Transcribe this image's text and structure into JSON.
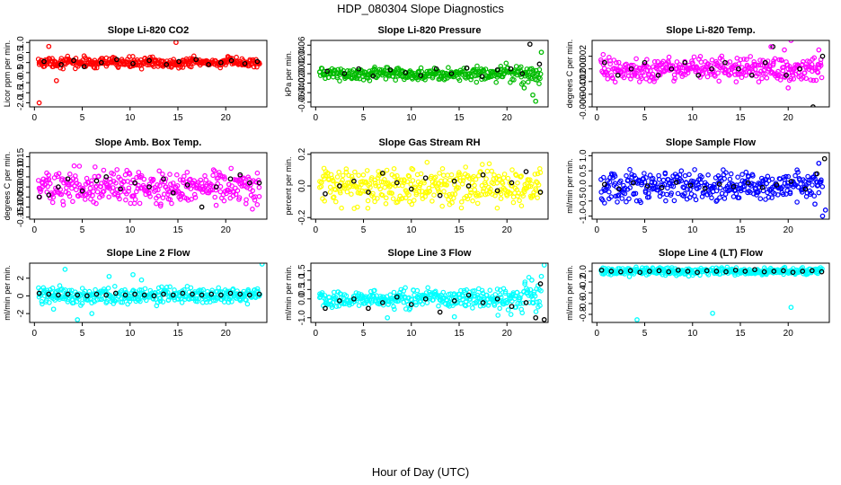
{
  "figure": {
    "title": "HDP_080304  Slope Diagnostics",
    "xlabel": "Hour of Day (UTC)"
  },
  "chart_data": [
    {
      "type": "scatter",
      "title": "Slope Li-820 CO2",
      "ylabel": "Licor ppm per min.",
      "xlim": [
        -0.5,
        24.3
      ],
      "ylim": [
        -2.2,
        1.1
      ],
      "xticks": [
        "0",
        "5",
        "10",
        "15",
        "20"
      ],
      "yticks": [
        "-2.0",
        "-1.5",
        "-1.0",
        "-0.5",
        "0.0",
        "0.5",
        "1.0"
      ],
      "color": "#ff0000",
      "center": 0.0,
      "spread": 0.15,
      "series": [
        {
          "name": "black",
          "color": "#000000",
          "x": [
            1.0,
            2.8,
            4.1,
            5.2,
            7.0,
            8.6,
            10.3,
            12.0,
            13.8,
            15.1,
            16.9,
            18.2,
            19.5,
            20.6,
            22.0,
            23.3
          ],
          "y": [
            0.05,
            -0.1,
            0.1,
            -0.2,
            0.0,
            0.15,
            -0.05,
            0.1,
            -0.1,
            0.05,
            0.15,
            -0.1,
            0.0,
            0.1,
            -0.05,
            0.05
          ]
        },
        {
          "name": "outliers",
          "color": "#ff0000",
          "x": [
            0.5,
            1.5,
            2.3,
            14.8
          ],
          "y": [
            -2.0,
            0.8,
            -0.9,
            1.0
          ]
        }
      ]
    },
    {
      "type": "scatter",
      "title": "Slope Li-820 Pressure",
      "ylabel": "kPa per min.",
      "xlim": [
        -0.5,
        24.3
      ],
      "ylim": [
        -0.07,
        0.07
      ],
      "xticks": [
        "0",
        "5",
        "10",
        "15",
        "20"
      ],
      "yticks": [
        "-0.06",
        "-0.04",
        "-0.02",
        "0.00",
        "0.02",
        "0.04",
        "0.06"
      ],
      "color": "#00bb00",
      "center": 0.0,
      "spread": 0.008,
      "series": [
        {
          "name": "black",
          "color": "#000000",
          "x": [
            1.2,
            3.0,
            4.5,
            6.0,
            7.8,
            9.4,
            11.0,
            12.6,
            14.2,
            15.8,
            17.4,
            19.0,
            20.4,
            21.6,
            22.4,
            23.4
          ],
          "y": [
            0.005,
            0.0,
            0.01,
            -0.005,
            0.008,
            0.002,
            -0.004,
            0.01,
            0.0,
            0.012,
            -0.006,
            0.008,
            0.01,
            0.0,
            0.062,
            0.02
          ]
        },
        {
          "name": "outliers",
          "color": "#00bb00",
          "x": [
            23.0,
            22.7,
            23.6,
            21.8
          ],
          "y": [
            -0.058,
            -0.045,
            0.045,
            -0.03
          ]
        }
      ]
    },
    {
      "type": "scatter",
      "title": "Slope Li-820 Temp.",
      "ylabel": "degrees C per min.",
      "xlim": [
        -0.5,
        24.3
      ],
      "ylim": [
        -0.006,
        0.0045
      ],
      "xticks": [
        "0",
        "5",
        "10",
        "15",
        "20"
      ],
      "yticks": [
        "-0.006",
        "-0.004",
        "-0.002",
        "0.000",
        "0.002"
      ],
      "color": "#ff00ff",
      "center": 0.0,
      "spread": 0.0011,
      "series": [
        {
          "name": "black",
          "color": "#000000",
          "x": [
            0.8,
            2.2,
            3.6,
            5.0,
            6.4,
            7.8,
            9.2,
            10.6,
            12.0,
            13.4,
            14.8,
            16.2,
            17.6,
            18.4,
            19.8,
            21.2,
            22.6,
            23.6
          ],
          "y": [
            0.001,
            -0.001,
            0.0,
            0.001,
            -0.001,
            0.0,
            0.001,
            -0.001,
            0.0,
            0.001,
            0.0,
            -0.001,
            0.001,
            0.0035,
            -0.001,
            0.0,
            -0.006,
            0.002
          ]
        },
        {
          "name": "outliers",
          "color": "#ff00ff",
          "x": [
            18.2,
            19.6,
            20.3,
            23.2,
            20.0
          ],
          "y": [
            0.0035,
            0.003,
            0.0045,
            0.003,
            -0.003
          ]
        }
      ]
    },
    {
      "type": "scatter",
      "title": "Slope Amb. Box Temp.",
      "ylabel": "degrees C per min.",
      "xlim": [
        -0.5,
        24.3
      ],
      "ylim": [
        -0.16,
        0.17
      ],
      "xticks": [
        "0",
        "5",
        "10",
        "15",
        "20"
      ],
      "yticks": [
        "-0.15",
        "-0.10",
        "-0.05",
        "0.00",
        "0.05",
        "0.10",
        "0.15"
      ],
      "color": "#ff00ff",
      "center": 0.0,
      "spread": 0.055,
      "series": [
        {
          "name": "black",
          "color": "#000000",
          "x": [
            0.5,
            1.5,
            2.5,
            3.5,
            5.0,
            6.5,
            7.5,
            9.0,
            10.5,
            12.0,
            13.5,
            14.5,
            16.0,
            17.5,
            19.0,
            20.5,
            21.5,
            22.5,
            23.5
          ],
          "y": [
            -0.05,
            -0.04,
            0.0,
            0.04,
            -0.02,
            0.03,
            0.05,
            -0.01,
            0.02,
            0.0,
            0.04,
            -0.03,
            0.01,
            -0.1,
            0.0,
            0.04,
            0.06,
            0.02,
            0.02
          ]
        }
      ]
    },
    {
      "type": "scatter",
      "title": "Slope Gas Stream RH",
      "ylabel": "percent per min.",
      "xlim": [
        -0.5,
        24.3
      ],
      "ylim": [
        -0.21,
        0.21
      ],
      "xticks": [
        "0",
        "5",
        "10",
        "15",
        "20"
      ],
      "yticks": [
        "-0.2",
        "0.0",
        "0.2"
      ],
      "color": "#ffff00",
      "center": 0.0,
      "spread": 0.075,
      "series": [
        {
          "name": "black",
          "color": "#000000",
          "x": [
            1.0,
            2.5,
            4.0,
            5.5,
            7.0,
            8.5,
            10.0,
            11.5,
            13.0,
            14.5,
            16.0,
            17.5,
            19.0,
            20.5,
            22.0,
            23.5
          ],
          "y": [
            -0.05,
            0.0,
            0.03,
            -0.04,
            0.08,
            0.02,
            -0.02,
            0.05,
            -0.06,
            0.03,
            0.0,
            0.07,
            -0.03,
            0.02,
            0.09,
            -0.04
          ]
        }
      ]
    },
    {
      "type": "scatter",
      "title": "Slope Sample Flow",
      "ylabel": "ml/min per min.",
      "xlim": [
        -0.5,
        24.3
      ],
      "ylim": [
        -1.1,
        1.1
      ],
      "xticks": [
        "0",
        "5",
        "10",
        "15",
        "20"
      ],
      "yticks": [
        "-1.0",
        "-0.5",
        "0.0",
        "0.5",
        "1.0"
      ],
      "color": "#0000ff",
      "center": 0.0,
      "spread": 0.28,
      "series": [
        {
          "name": "black",
          "color": "#000000",
          "x": [
            0.8,
            2.3,
            3.8,
            5.3,
            6.8,
            8.3,
            9.8,
            11.3,
            12.8,
            14.3,
            15.8,
            17.3,
            18.8,
            20.3,
            21.8,
            23.0,
            23.8
          ],
          "y": [
            0.05,
            -0.1,
            0.1,
            0.0,
            -0.05,
            0.12,
            0.02,
            -0.08,
            0.06,
            -0.02,
            0.1,
            -0.05,
            0.03,
            0.15,
            -0.1,
            0.4,
            0.9
          ]
        },
        {
          "name": "outliers",
          "color": "#0000ff",
          "x": [
            23.6,
            23.9,
            23.2,
            22.8
          ],
          "y": [
            -1.0,
            -0.8,
            0.75,
            -0.6
          ]
        }
      ]
    },
    {
      "type": "scatter",
      "title": "Slope Line 2 Flow",
      "ylabel": "ml/min per min.",
      "xlim": [
        -0.5,
        24.3
      ],
      "ylim": [
        -3.0,
        3.7
      ],
      "xticks": [
        "0",
        "5",
        "10",
        "15",
        "20"
      ],
      "yticks": [
        "-2",
        "0",
        "2"
      ],
      "color": "#00ffff",
      "center": 0.0,
      "spread": 0.55,
      "series": [
        {
          "name": "black",
          "color": "#000000",
          "x": [
            0.5,
            1.5,
            2.5,
            3.5,
            4.5,
            5.5,
            6.5,
            7.5,
            8.5,
            9.5,
            10.5,
            11.5,
            12.5,
            13.5,
            14.5,
            15.5,
            16.5,
            17.5,
            18.5,
            19.5,
            20.5,
            21.5,
            22.5,
            23.5
          ],
          "y": [
            0.3,
            0.2,
            0.1,
            0.2,
            0.1,
            0.0,
            0.2,
            0.1,
            0.3,
            0.1,
            0.2,
            0.1,
            0.0,
            0.2,
            0.1,
            0.3,
            0.2,
            0.1,
            0.2,
            0.1,
            0.3,
            0.2,
            0.1,
            0.2
          ]
        },
        {
          "name": "outliers",
          "color": "#00ffff",
          "x": [
            4.5,
            3.2,
            23.8,
            2.0,
            7.8,
            6.0,
            11.2,
            10.3
          ],
          "y": [
            -2.7,
            3.0,
            3.6,
            -1.5,
            2.2,
            -2.0,
            1.8,
            2.4
          ]
        }
      ]
    },
    {
      "type": "scatter",
      "title": "Slope Line 3 Flow",
      "ylabel": "ml/min per min.",
      "xlim": [
        -0.5,
        24.3
      ],
      "ylim": [
        -1.25,
        1.9
      ],
      "xticks": [
        "0",
        "5",
        "10",
        "15",
        "20"
      ],
      "yticks": [
        "-1.0",
        "0.0",
        "0.5",
        "1.0",
        "1.5"
      ],
      "color": "#00ffff",
      "center": 0.0,
      "spread": 0.28,
      "series": [
        {
          "name": "black",
          "color": "#000000",
          "x": [
            1.0,
            2.5,
            4.0,
            5.5,
            7.0,
            8.5,
            10.0,
            11.5,
            13.0,
            14.5,
            16.0,
            17.5,
            19.0,
            20.5,
            22.0,
            23.0,
            23.5,
            23.9
          ],
          "y": [
            -0.5,
            -0.1,
            0.0,
            -0.5,
            -0.2,
            0.1,
            -0.3,
            0.0,
            -0.7,
            -0.1,
            0.2,
            -0.2,
            0.0,
            -0.4,
            -0.2,
            -1.0,
            0.8,
            -1.1
          ]
        },
        {
          "name": "outliers",
          "color": "#00ffff",
          "x": [
            23.9,
            23.6,
            22.6,
            7.5,
            14.5
          ],
          "y": [
            1.8,
            1.2,
            1.0,
            -1.0,
            -0.95
          ]
        }
      ]
    },
    {
      "type": "scatter",
      "title": "Slope Line 4 (LT) Flow",
      "ylabel": "ml/min per min.",
      "xlim": [
        -0.5,
        24.3
      ],
      "ylim": [
        -0.95,
        0.15
      ],
      "xticks": [
        "0",
        "5",
        "10",
        "15",
        "20"
      ],
      "yticks": [
        "-0.8",
        "-0.6",
        "-0.4",
        "-0.2",
        "0.0"
      ],
      "color": "#00ffff",
      "center": 0.0,
      "spread": 0.04,
      "series": [
        {
          "name": "black",
          "color": "#000000",
          "x": [
            0.5,
            1.5,
            2.5,
            3.5,
            4.5,
            5.5,
            6.5,
            7.5,
            8.5,
            9.5,
            10.5,
            11.5,
            12.5,
            13.5,
            14.5,
            15.5,
            16.5,
            17.5,
            18.5,
            19.5,
            20.5,
            21.5,
            22.5,
            23.5
          ],
          "y": [
            0.02,
            0.0,
            -0.01,
            0.01,
            -0.02,
            0.0,
            0.01,
            -0.01,
            0.02,
            0.0,
            -0.02,
            0.01,
            0.0,
            -0.01,
            0.02,
            0.0,
            0.03,
            -0.01,
            0.0,
            0.01,
            -0.02,
            0.0,
            0.01,
            -0.01
          ]
        },
        {
          "name": "outliers",
          "color": "#00ffff",
          "x": [
            4.2,
            12.1,
            20.3,
            3.4,
            9.6
          ],
          "y": [
            -0.9,
            -0.78,
            -0.67,
            -0.1,
            -0.09
          ]
        }
      ]
    }
  ]
}
